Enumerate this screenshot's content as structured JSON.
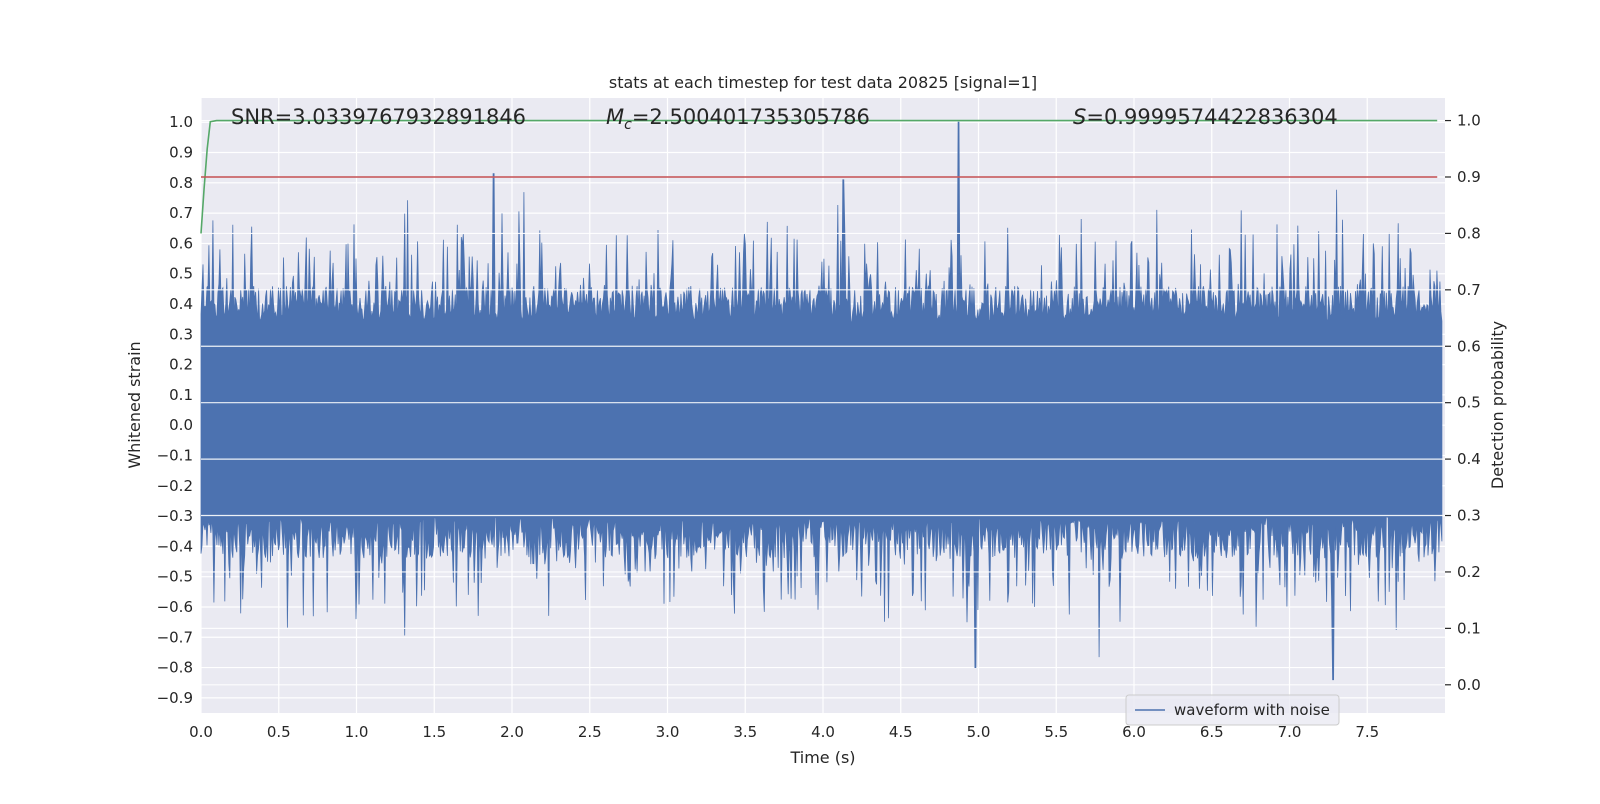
{
  "chart_data": {
    "type": "line",
    "title": "stats at each timestep for test data 20825 [signal=1]",
    "xlabel": "Time (s)",
    "ylabel": "Whitened strain",
    "y2label": "Detection probability",
    "xlim": [
      0.0,
      8.0
    ],
    "ylim": [
      -0.95,
      1.08
    ],
    "y2lim": [
      -0.05,
      1.04
    ],
    "x_ticks": [
      "0.0",
      "0.5",
      "1.0",
      "1.5",
      "2.0",
      "2.5",
      "3.0",
      "3.5",
      "4.0",
      "4.5",
      "5.0",
      "5.5",
      "6.0",
      "6.5",
      "7.0",
      "7.5"
    ],
    "y_ticks": [
      "1.0",
      "0.9",
      "0.8",
      "0.7",
      "0.6",
      "0.5",
      "0.4",
      "0.3",
      "0.2",
      "0.1",
      "0.0",
      "−0.1",
      "−0.2",
      "−0.3",
      "−0.4",
      "−0.5",
      "−0.6",
      "−0.7",
      "−0.8",
      "−0.9"
    ],
    "y2_ticks": [
      "1.0",
      "0.9",
      "0.8",
      "0.7",
      "0.6",
      "0.5",
      "0.4",
      "0.3",
      "0.2",
      "0.1",
      "0.0"
    ],
    "annotations": {
      "snr": "SNR=3.0339767932891846",
      "mc_symbol": "M",
      "mc_sub": "c",
      "mc_value": "=2.500401735305786",
      "s_symbol": "S",
      "s_value": "=0.9999574422836304"
    },
    "legend": {
      "placement": "lower-right",
      "entries": [
        "waveform with noise"
      ]
    },
    "grid": true,
    "series": [
      {
        "name": "waveform with noise",
        "axis": "left",
        "color": "#4c72b0",
        "note_envelope_peaks": [
          {
            "x": 1.88,
            "y": 0.83
          },
          {
            "x": 4.13,
            "y": 0.81
          },
          {
            "x": 4.87,
            "y": 1.0
          },
          {
            "x": 4.98,
            "y": -0.8
          },
          {
            "x": 7.28,
            "y": -0.84
          }
        ]
      },
      {
        "axis": "right",
        "color": "#55a868",
        "x": [
          0.0,
          0.02,
          0.04,
          0.06,
          0.1,
          7.95
        ],
        "values": [
          0.8,
          0.88,
          0.95,
          0.998,
          1.0,
          1.0
        ]
      },
      {
        "axis": "right",
        "color": "#c44e52",
        "x": [
          0.0,
          7.95
        ],
        "values": [
          0.9,
          0.9
        ]
      }
    ]
  },
  "colors": {
    "axes_bg": "#eaeaf2",
    "grid": "#ffffff",
    "waveform": "#4c72b0",
    "probability": "#55a868",
    "threshold": "#c44e52"
  }
}
